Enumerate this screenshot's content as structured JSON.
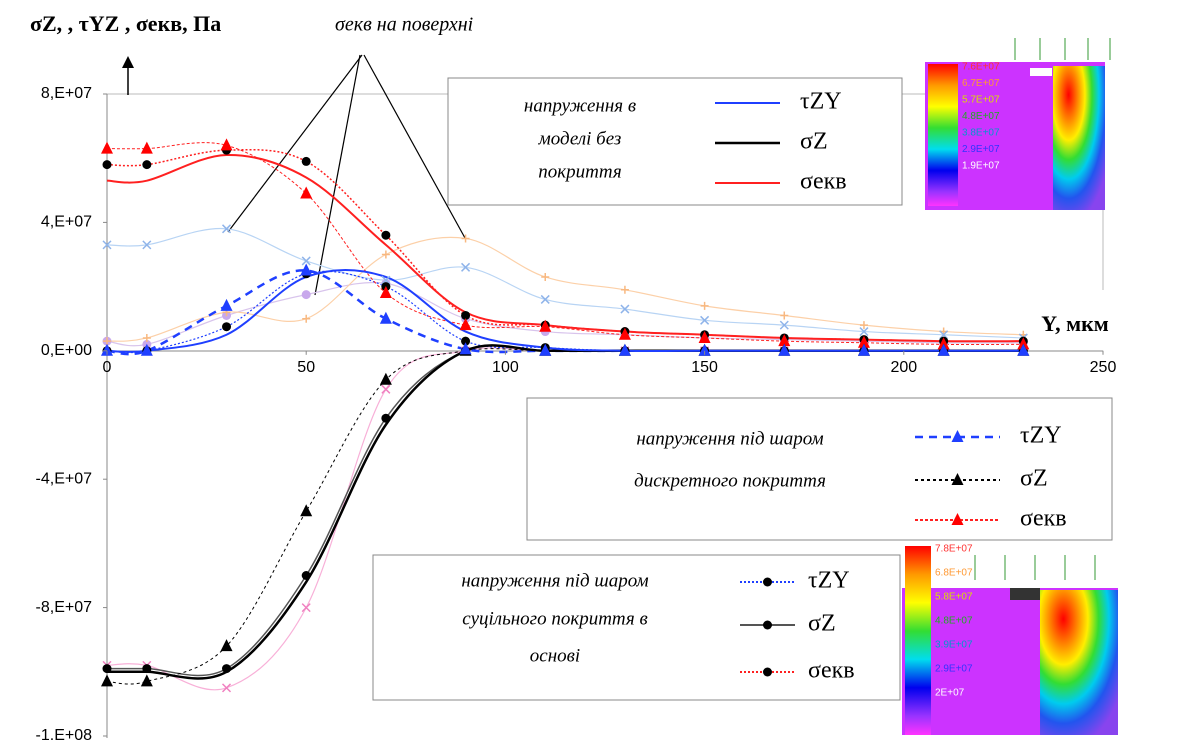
{
  "chart_data": {
    "type": "line",
    "y_label": "σZ, , τYZ , σекв, Па",
    "x_label": "Y, мкм",
    "annotation": "σекв на поверхні",
    "x": [
      0,
      10,
      30,
      50,
      70,
      90,
      110,
      130,
      150,
      170,
      190,
      210,
      230
    ],
    "xlim": [
      0,
      250
    ],
    "xticks": [
      0,
      50,
      100,
      150,
      200,
      250
    ],
    "ylim": [
      -120000000,
      80000000
    ],
    "yticks": [
      {
        "value": -120000000,
        "label": "-1.E+08"
      },
      {
        "value": -80000000,
        "label": "-8,E+07"
      },
      {
        "value": -40000000,
        "label": "-4,E+07"
      },
      {
        "value": 0,
        "label": "0,E+00"
      },
      {
        "value": 40000000,
        "label": "4,E+07"
      },
      {
        "value": 80000000,
        "label": "8,E+07"
      }
    ],
    "grid": false,
    "legend_titles": [
      [
        "напруження в",
        "моделі без",
        "покриття"
      ],
      [
        "напруження під шаром",
        "дискретного покриття"
      ],
      [
        "напруження під шаром",
        "суцільного покриття в",
        "основі"
      ]
    ],
    "series": [
      {
        "name": "τZY",
        "color": "#1f3fff",
        "width": 2,
        "dash": "none",
        "marker": "none",
        "values": [
          0,
          0,
          5000000,
          23000000,
          23000000,
          6000000,
          1000000,
          0,
          0,
          0,
          0,
          0,
          0
        ]
      },
      {
        "name": "σZ",
        "color": "#000000",
        "width": 2.5,
        "dash": "none",
        "marker": "none",
        "values": [
          -100000000,
          -100000000,
          -100000000,
          -72000000,
          -23000000,
          0,
          0,
          0,
          0,
          0,
          0,
          0,
          0
        ]
      },
      {
        "name": "σекв",
        "color": "#ff2020",
        "width": 2,
        "dash": "none",
        "marker": "none",
        "values": [
          53000000,
          53000000,
          61000000,
          54000000,
          33000000,
          12000000,
          8000000,
          6000000,
          5000000,
          4000000,
          3500000,
          3000000,
          3000000
        ]
      },
      {
        "name": "τZY",
        "color": "#1f3fff",
        "width": 2.5,
        "dash": "8 6",
        "marker": "triangle",
        "marker_color": "#1f3fff",
        "values": [
          0,
          0,
          14000000,
          25000000,
          10000000,
          500000,
          0,
          0,
          0,
          0,
          0,
          0,
          0
        ]
      },
      {
        "name": "σZ",
        "color": "#000000",
        "width": 1,
        "dash": "3 3",
        "marker": "triangle",
        "marker_color": "#000000",
        "values": [
          -103000000,
          -103000000,
          -92000000,
          -50000000,
          -9000000,
          0,
          0,
          0,
          0,
          0,
          0,
          0,
          0
        ]
      },
      {
        "name": "σекв",
        "color": "#ff2020",
        "width": 1,
        "dash": "3 2",
        "marker": "triangle",
        "marker_color": "#ff0000",
        "values": [
          63000000,
          63000000,
          64000000,
          49000000,
          18000000,
          8000000,
          7500000,
          5000000,
          4000000,
          3000000,
          2500000,
          2000000,
          2000000
        ]
      },
      {
        "name": "τZY",
        "color": "#1f3fff",
        "width": 1.2,
        "dash": "2 2",
        "marker": "circle",
        "marker_color": "#000000",
        "values": [
          0,
          0,
          7500000,
          24000000,
          20000000,
          3000000,
          1000000,
          0,
          0,
          0,
          0,
          0,
          0
        ]
      },
      {
        "name": "σZ",
        "color": "#555555",
        "width": 1.5,
        "dash": "none",
        "marker": "circle",
        "marker_color": "#000000",
        "values": [
          -99000000,
          -99000000,
          -99000000,
          -70000000,
          -21000000,
          0,
          0,
          0,
          0,
          0,
          0,
          0,
          0
        ]
      },
      {
        "name": "σекв",
        "color": "#ff2020",
        "width": 1.5,
        "dash": "2 2",
        "marker": "circle",
        "marker_color": "#000000",
        "values": [
          58000000,
          58000000,
          62500000,
          59000000,
          36000000,
          11000000,
          8000000,
          6000000,
          5000000,
          4000000,
          3500000,
          3000000,
          3000000
        ]
      },
      {
        "color": "#b8d4f4",
        "width": 1.2,
        "dash": "none",
        "marker": "x",
        "marker_color": "#8fb4ea",
        "values": [
          33000000,
          33000000,
          38000000,
          28000000,
          22000000,
          26000000,
          16000000,
          13000000,
          9500000,
          8000000,
          6000000,
          5000000,
          4000000
        ]
      },
      {
        "color": "#fcd0a8",
        "width": 1.2,
        "dash": "none",
        "marker": "plus",
        "marker_color": "#f8b880",
        "values": [
          3000000,
          4000000,
          12000000,
          10000000,
          30000000,
          35000000,
          23000000,
          19000000,
          14000000,
          11000000,
          8000000,
          6000000,
          5000000
        ]
      },
      {
        "color": "#f8b0d8",
        "width": 1.2,
        "dash": "none",
        "marker": "x",
        "marker_color": "#f080c0",
        "values": [
          -98000000,
          -98000000,
          -105000000,
          -80000000,
          -12000000,
          0,
          0,
          0,
          0,
          0,
          0,
          0,
          0
        ]
      },
      {
        "color": "#d8c4ec",
        "width": 1.2,
        "dash": "none",
        "marker": "circle",
        "marker_color": "#c8a8ec",
        "values": [
          3000000,
          2000000,
          11000000,
          17500000,
          21000000,
          10000000,
          6000000,
          5000000,
          4000000,
          3500000,
          3000000,
          2500000,
          2500000
        ]
      }
    ]
  },
  "insets": [
    {
      "labels": [
        "7.6E+07",
        "6.7E+07",
        "5.7E+07",
        "4.8E+07",
        "3.8E+07",
        "2.9E+07",
        "1.9E+07"
      ]
    },
    {
      "labels": [
        "7.8E+07",
        "6.8E+07",
        "5.8E+07",
        "4.8E+07",
        "3.9E+07",
        "2.9E+07",
        "2E+07"
      ]
    }
  ]
}
